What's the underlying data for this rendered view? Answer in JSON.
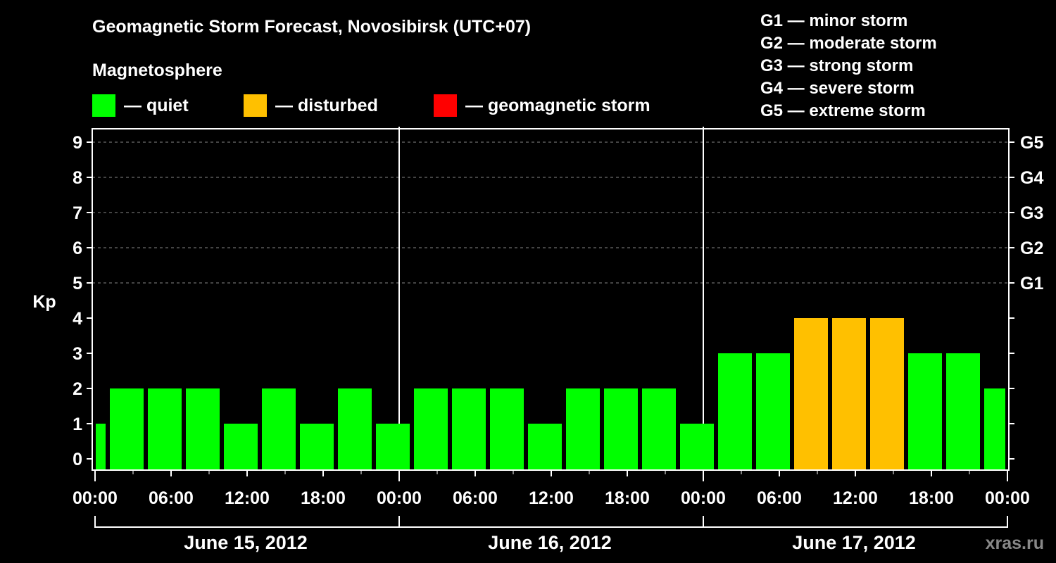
{
  "header": {
    "title": "Geomagnetic Storm Forecast, Novosibirsk (UTC+07)",
    "subtitle": "Magnetosphere",
    "legend": [
      {
        "label": "— quiet",
        "color": "#00ff00"
      },
      {
        "label": "— disturbed",
        "color": "#ffc000"
      },
      {
        "label": "— geomagnetic storm",
        "color": "#ff0000"
      }
    ],
    "g_scale": [
      "G1 — minor storm",
      "G2 — moderate storm",
      "G3 — strong storm",
      "G4 — severe storm",
      "G5 — extreme storm"
    ]
  },
  "watermark": "xras.ru",
  "chart_data": {
    "type": "bar",
    "title": "Geomagnetic Storm Forecast, Novosibirsk (UTC+07)",
    "xlabel": "",
    "ylabel": "Kp",
    "ylim": [
      0,
      9
    ],
    "yticks": [
      0,
      1,
      2,
      3,
      4,
      5,
      6,
      7,
      8,
      9
    ],
    "right_axis_labels": [
      {
        "kp": 5,
        "label": "G1"
      },
      {
        "kp": 6,
        "label": "G2"
      },
      {
        "kp": 7,
        "label": "G3"
      },
      {
        "kp": 8,
        "label": "G4"
      },
      {
        "kp": 9,
        "label": "G5"
      }
    ],
    "xtick_labels": [
      "00:00",
      "06:00",
      "12:00",
      "18:00",
      "00:00",
      "06:00",
      "12:00",
      "18:00",
      "00:00",
      "06:00",
      "12:00",
      "18:00",
      "00:00"
    ],
    "days": [
      "June 15, 2012",
      "June 16, 2012",
      "June 17, 2012"
    ],
    "grid": "dashed horizontal at Kp 5-9",
    "bin_hours": 3,
    "categories": [
      "Jun14 22-01",
      "Jun15 01-04",
      "Jun15 04-07",
      "Jun15 07-10",
      "Jun15 10-13",
      "Jun15 13-16",
      "Jun15 16-19",
      "Jun15 19-22",
      "Jun15 22-01",
      "Jun16 01-04",
      "Jun16 04-07",
      "Jun16 07-10",
      "Jun16 10-13",
      "Jun16 13-16",
      "Jun16 16-19",
      "Jun16 19-22",
      "Jun16 22-01",
      "Jun17 01-04",
      "Jun17 04-07",
      "Jun17 07-10",
      "Jun17 10-13",
      "Jun17 13-16",
      "Jun17 16-19",
      "Jun17 19-22",
      "Jun17 22-01"
    ],
    "values": [
      1,
      2,
      2,
      2,
      1,
      2,
      1,
      2,
      1,
      2,
      2,
      2,
      1,
      2,
      2,
      2,
      1,
      3,
      3,
      4,
      4,
      4,
      3,
      3,
      2
    ],
    "status": [
      "quiet",
      "quiet",
      "quiet",
      "quiet",
      "quiet",
      "quiet",
      "quiet",
      "quiet",
      "quiet",
      "quiet",
      "quiet",
      "quiet",
      "quiet",
      "quiet",
      "quiet",
      "quiet",
      "quiet",
      "quiet",
      "quiet",
      "disturbed",
      "disturbed",
      "disturbed",
      "quiet",
      "quiet",
      "quiet"
    ],
    "colors": {
      "quiet": "#00ff00",
      "disturbed": "#ffc000",
      "storm": "#ff0000"
    }
  }
}
